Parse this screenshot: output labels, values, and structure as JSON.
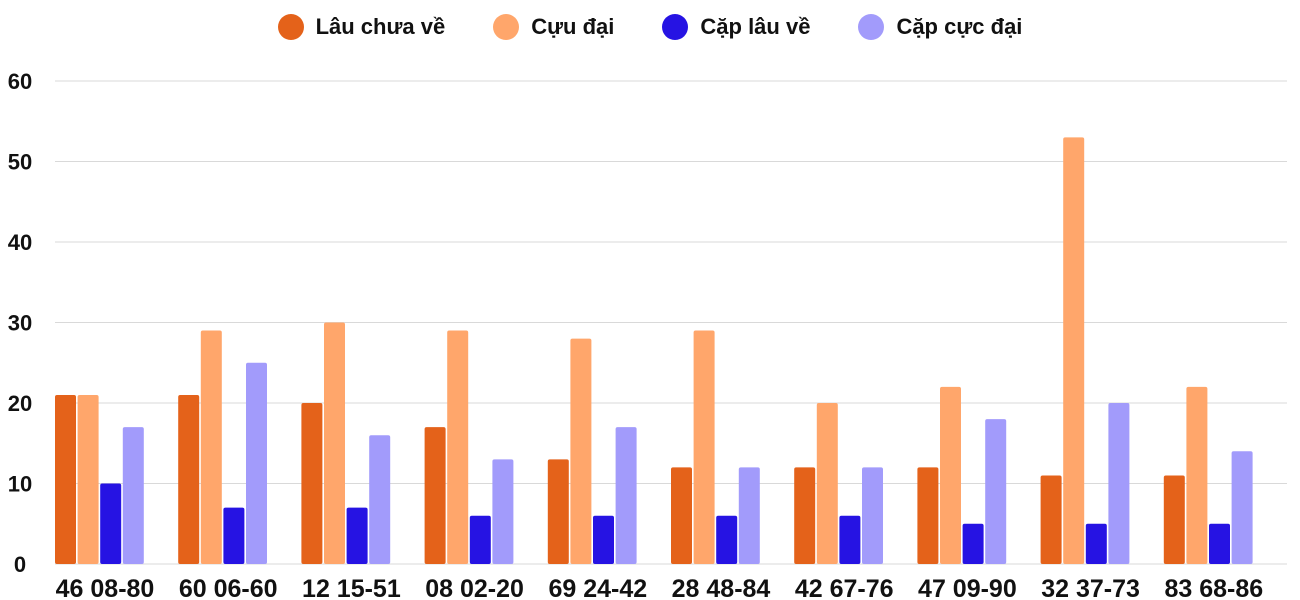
{
  "chart_data": {
    "type": "bar",
    "categories": [
      "46 08-80",
      "60 06-60",
      "12 15-51",
      "08 02-20",
      "69 24-42",
      "28 48-84",
      "42 67-76",
      "47 09-90",
      "32 37-73",
      "83 68-86"
    ],
    "series": [
      {
        "name": "Lâu chưa về",
        "color": "#e4621a",
        "values": [
          21,
          21,
          20,
          17,
          13,
          12,
          12,
          12,
          11,
          11
        ]
      },
      {
        "name": "Cựu đại",
        "color": "#ffa66b",
        "values": [
          21,
          29,
          30,
          29,
          28,
          29,
          20,
          22,
          53,
          22
        ]
      },
      {
        "name": "Cặp lâu về",
        "color": "#2613e3",
        "values": [
          10,
          7,
          7,
          6,
          6,
          6,
          6,
          5,
          5,
          5
        ]
      },
      {
        "name": "Cặp cực đại",
        "color": "#a29bfb",
        "values": [
          17,
          25,
          16,
          13,
          17,
          12,
          12,
          18,
          20,
          14
        ]
      }
    ],
    "yticks": [
      "0",
      "10",
      "20",
      "30",
      "40",
      "50",
      "60"
    ],
    "ylim": [
      0,
      60
    ],
    "grid": true,
    "legend_position": "top"
  }
}
